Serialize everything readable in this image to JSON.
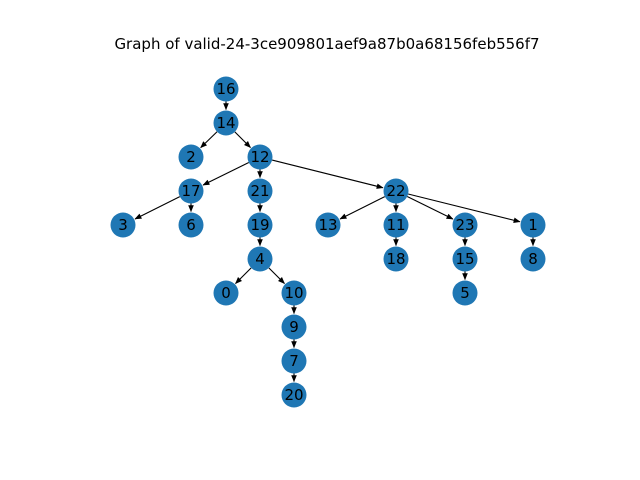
{
  "title": "Graph of valid-24-3ce909801aef9a87b0a68156feb556f7",
  "style": {
    "node_color": "#1f77b4",
    "edge_color": "#000000",
    "label_color": "#000000",
    "background": "#ffffff"
  },
  "graph": {
    "directed": true,
    "nodes": [
      "16",
      "14",
      "2",
      "12",
      "17",
      "21",
      "22",
      "3",
      "6",
      "19",
      "13",
      "11",
      "23",
      "1",
      "4",
      "18",
      "15",
      "8",
      "0",
      "10",
      "5",
      "9",
      "7",
      "20"
    ],
    "edges": [
      [
        "16",
        "14"
      ],
      [
        "14",
        "2"
      ],
      [
        "14",
        "12"
      ],
      [
        "12",
        "17"
      ],
      [
        "12",
        "21"
      ],
      [
        "12",
        "22"
      ],
      [
        "17",
        "3"
      ],
      [
        "17",
        "6"
      ],
      [
        "21",
        "19"
      ],
      [
        "19",
        "4"
      ],
      [
        "4",
        "0"
      ],
      [
        "4",
        "10"
      ],
      [
        "10",
        "9"
      ],
      [
        "9",
        "7"
      ],
      [
        "7",
        "20"
      ],
      [
        "22",
        "13"
      ],
      [
        "22",
        "11"
      ],
      [
        "22",
        "23"
      ],
      [
        "22",
        "1"
      ],
      [
        "11",
        "18"
      ],
      [
        "23",
        "15"
      ],
      [
        "15",
        "5"
      ],
      [
        "1",
        "8"
      ]
    ]
  }
}
